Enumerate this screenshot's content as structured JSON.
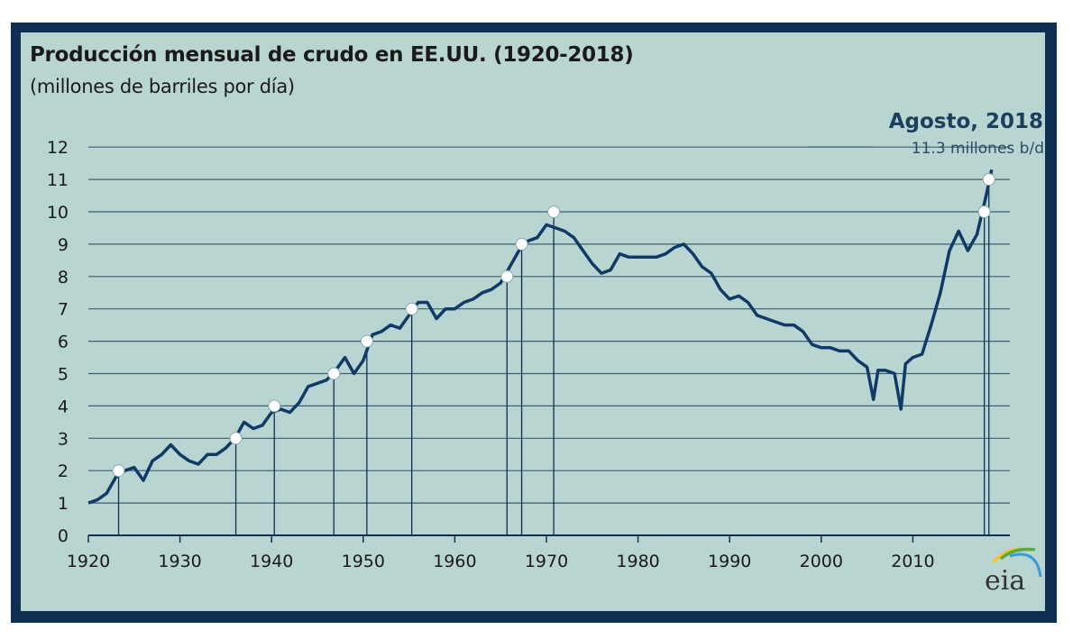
{
  "chart_data": {
    "type": "line",
    "title": "Producción mensual de crudo en EE.UU. (1920-2018)",
    "subtitle": "(millones de barriles por día)",
    "xlabel": "",
    "ylabel": "millones de barriles por día",
    "xlim": [
      1920,
      2019
    ],
    "ylim": [
      0,
      12
    ],
    "grid": "horizontal",
    "x_ticks": [
      "1920",
      "1930",
      "1940",
      "1950",
      "1960",
      "1970",
      "1980",
      "1990",
      "2000",
      "2010"
    ],
    "y_ticks": [
      "0",
      "1",
      "2",
      "3",
      "4",
      "5",
      "6",
      "7",
      "8",
      "9",
      "10",
      "11",
      "12"
    ],
    "annotation": {
      "title": "Agosto, 2018",
      "text": "11.3 millones b/d"
    },
    "line_color": "#0f3a66",
    "series": [
      {
        "name": "Producción",
        "x": [
          1920,
          1921,
          1922,
          1923,
          1924,
          1925,
          1926,
          1927,
          1928,
          1929,
          1930,
          1931,
          1932,
          1933,
          1934,
          1935,
          1936,
          1937,
          1938,
          1939,
          1940,
          1941,
          1942,
          1943,
          1944,
          1945,
          1946,
          1947,
          1948,
          1949,
          1950,
          1951,
          1952,
          1953,
          1954,
          1955,
          1956,
          1957,
          1958,
          1959,
          1960,
          1961,
          1962,
          1963,
          1964,
          1965,
          1966,
          1967,
          1968,
          1969,
          1970,
          1971,
          1972,
          1973,
          1974,
          1975,
          1976,
          1977,
          1978,
          1979,
          1980,
          1981,
          1982,
          1983,
          1984,
          1985,
          1986,
          1987,
          1988,
          1989,
          1990,
          1991,
          1992,
          1993,
          1994,
          1995,
          1996,
          1997,
          1998,
          1999,
          2000,
          2001,
          2002,
          2003,
          2004,
          2005,
          2005.7,
          2006.2,
          2007,
          2008,
          2008.7,
          2009.2,
          2010,
          2011,
          2012,
          2013,
          2014,
          2015,
          2016,
          2017,
          2018,
          2018.6
        ],
        "values": [
          1.0,
          1.1,
          1.3,
          1.8,
          2.0,
          2.1,
          1.7,
          2.3,
          2.5,
          2.8,
          2.5,
          2.3,
          2.2,
          2.5,
          2.5,
          2.7,
          3.0,
          3.5,
          3.3,
          3.4,
          3.8,
          3.9,
          3.8,
          4.1,
          4.6,
          4.7,
          4.8,
          5.1,
          5.5,
          5.0,
          5.4,
          6.2,
          6.3,
          6.5,
          6.4,
          6.8,
          7.2,
          7.2,
          6.7,
          7.0,
          7.0,
          7.2,
          7.3,
          7.5,
          7.6,
          7.8,
          8.3,
          8.8,
          9.1,
          9.2,
          9.6,
          9.5,
          9.4,
          9.2,
          8.8,
          8.4,
          8.1,
          8.2,
          8.7,
          8.6,
          8.6,
          8.6,
          8.6,
          8.7,
          8.9,
          9.0,
          8.7,
          8.3,
          8.1,
          7.6,
          7.3,
          7.4,
          7.2,
          6.8,
          6.7,
          6.6,
          6.5,
          6.5,
          6.3,
          5.9,
          5.8,
          5.8,
          5.7,
          5.7,
          5.4,
          5.2,
          4.2,
          5.1,
          5.1,
          5.0,
          3.9,
          5.3,
          5.5,
          5.6,
          6.5,
          7.5,
          8.8,
          9.4,
          8.8,
          9.3,
          10.5,
          11.3
        ]
      }
    ],
    "milestones": [
      {
        "x": 1923.3,
        "y": 2
      },
      {
        "x": 1936.1,
        "y": 3
      },
      {
        "x": 1940.3,
        "y": 4
      },
      {
        "x": 1946.8,
        "y": 5
      },
      {
        "x": 1950.4,
        "y": 6
      },
      {
        "x": 1955.3,
        "y": 7
      },
      {
        "x": 1965.7,
        "y": 8
      },
      {
        "x": 1967.3,
        "y": 9
      },
      {
        "x": 1970.8,
        "y": 10
      },
      {
        "x": 2017.8,
        "y": 10
      },
      {
        "x": 2018.3,
        "y": 11
      }
    ],
    "logo": "eia"
  }
}
